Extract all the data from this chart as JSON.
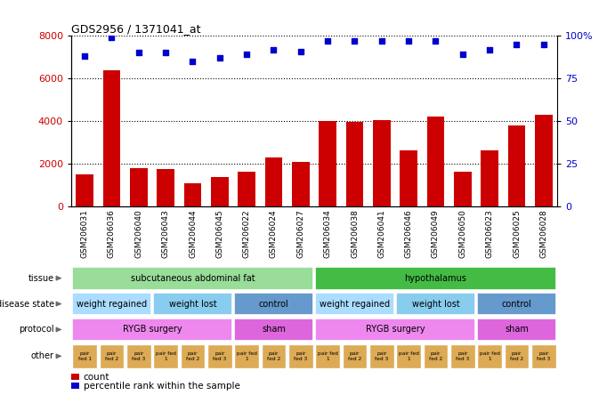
{
  "title": "GDS2956 / 1371041_at",
  "samples": [
    "GSM206031",
    "GSM206036",
    "GSM206040",
    "GSM206043",
    "GSM206044",
    "GSM206045",
    "GSM206022",
    "GSM206024",
    "GSM206027",
    "GSM206034",
    "GSM206038",
    "GSM206041",
    "GSM206046",
    "GSM206049",
    "GSM206050",
    "GSM206023",
    "GSM206025",
    "GSM206028"
  ],
  "counts": [
    1500,
    6400,
    1800,
    1750,
    1100,
    1400,
    1650,
    2300,
    2100,
    4000,
    3950,
    4050,
    2650,
    4200,
    1650,
    2650,
    3800,
    4300
  ],
  "percentile_ranks": [
    88,
    99,
    90,
    90,
    85,
    87,
    89,
    92,
    91,
    97,
    97,
    97,
    97,
    97,
    89,
    92,
    95,
    95
  ],
  "ylim_left": [
    0,
    8000
  ],
  "ylim_right": [
    0,
    100
  ],
  "yticks_left": [
    0,
    2000,
    4000,
    6000,
    8000
  ],
  "yticks_right": [
    0,
    25,
    50,
    75,
    100
  ],
  "bar_color": "#cc0000",
  "dot_color": "#0000cc",
  "tissue_labels": [
    {
      "label": "subcutaneous abdominal fat",
      "start": 0,
      "end": 9,
      "color": "#99dd99"
    },
    {
      "label": "hypothalamus",
      "start": 9,
      "end": 18,
      "color": "#44bb44"
    }
  ],
  "disease_state_labels": [
    {
      "label": "weight regained",
      "start": 0,
      "end": 3,
      "color": "#aaddff"
    },
    {
      "label": "weight lost",
      "start": 3,
      "end": 6,
      "color": "#88ccee"
    },
    {
      "label": "control",
      "start": 6,
      "end": 9,
      "color": "#6699cc"
    },
    {
      "label": "weight regained",
      "start": 9,
      "end": 12,
      "color": "#aaddff"
    },
    {
      "label": "weight lost",
      "start": 12,
      "end": 15,
      "color": "#88ccee"
    },
    {
      "label": "control",
      "start": 15,
      "end": 18,
      "color": "#6699cc"
    }
  ],
  "protocol_labels": [
    {
      "label": "RYGB surgery",
      "start": 0,
      "end": 6,
      "color": "#ee88ee"
    },
    {
      "label": "sham",
      "start": 6,
      "end": 9,
      "color": "#dd66dd"
    },
    {
      "label": "RYGB surgery",
      "start": 9,
      "end": 15,
      "color": "#ee88ee"
    },
    {
      "label": "sham",
      "start": 15,
      "end": 18,
      "color": "#dd66dd"
    }
  ],
  "other_labels": [
    "pair\nfed 1",
    "pair\nfed 2",
    "pair\nfed 3",
    "pair fed\n1",
    "pair\nfed 2",
    "pair\nfed 3",
    "pair fed\n1",
    "pair\nfed 2",
    "pair\nfed 3",
    "pair fed\n1",
    "pair\nfed 2",
    "pair\nfed 3",
    "pair fed\n1",
    "pair\nfed 2",
    "pair\nfed 3",
    "pair fed\n1",
    "pair\nfed 2",
    "pair\nfed 3"
  ],
  "other_color": "#ddaa55",
  "legend_count_color": "#cc0000",
  "legend_dot_color": "#0000cc",
  "row_labels": [
    "tissue",
    "disease state",
    "protocol",
    "other"
  ]
}
